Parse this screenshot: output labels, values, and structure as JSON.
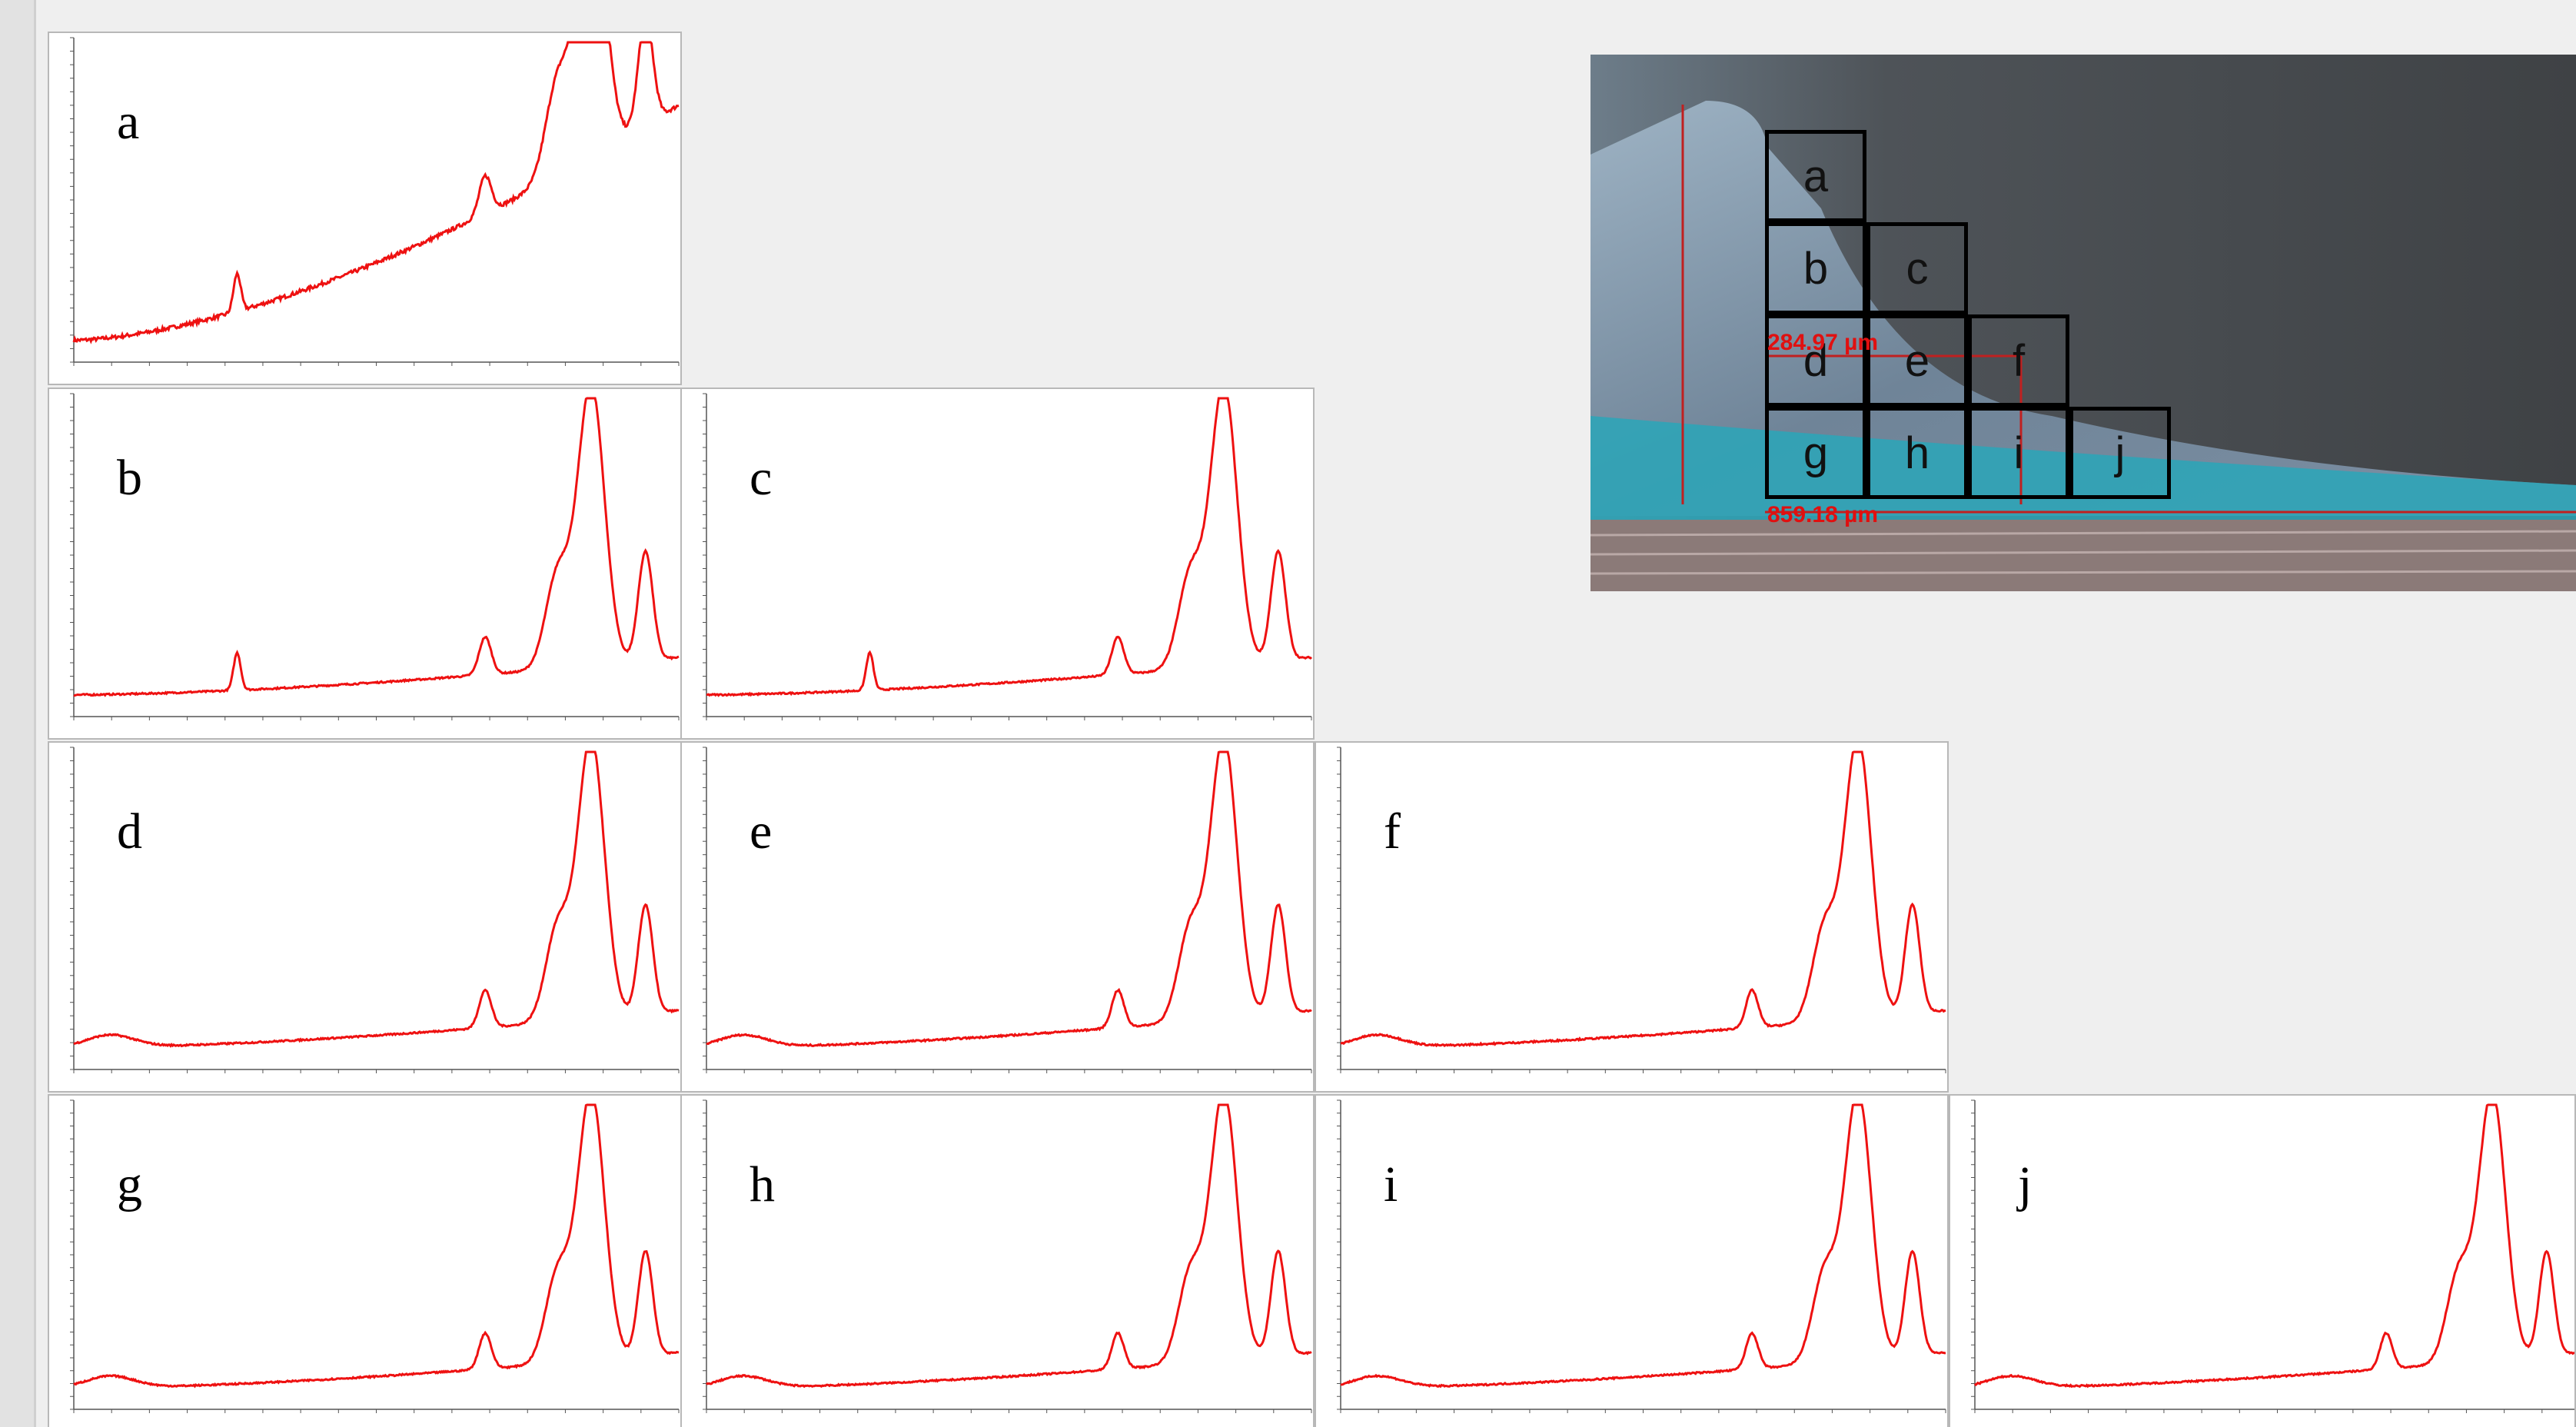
{
  "panels": [
    "a",
    "b",
    "c",
    "d",
    "e",
    "f",
    "g",
    "h",
    "i",
    "j"
  ],
  "micrograph": {
    "cells": [
      "a",
      "b",
      "c",
      "d",
      "e",
      "f",
      "g",
      "h",
      "i",
      "j"
    ],
    "measurements": [
      "284.97 µm",
      "859.18 µm"
    ]
  }
}
